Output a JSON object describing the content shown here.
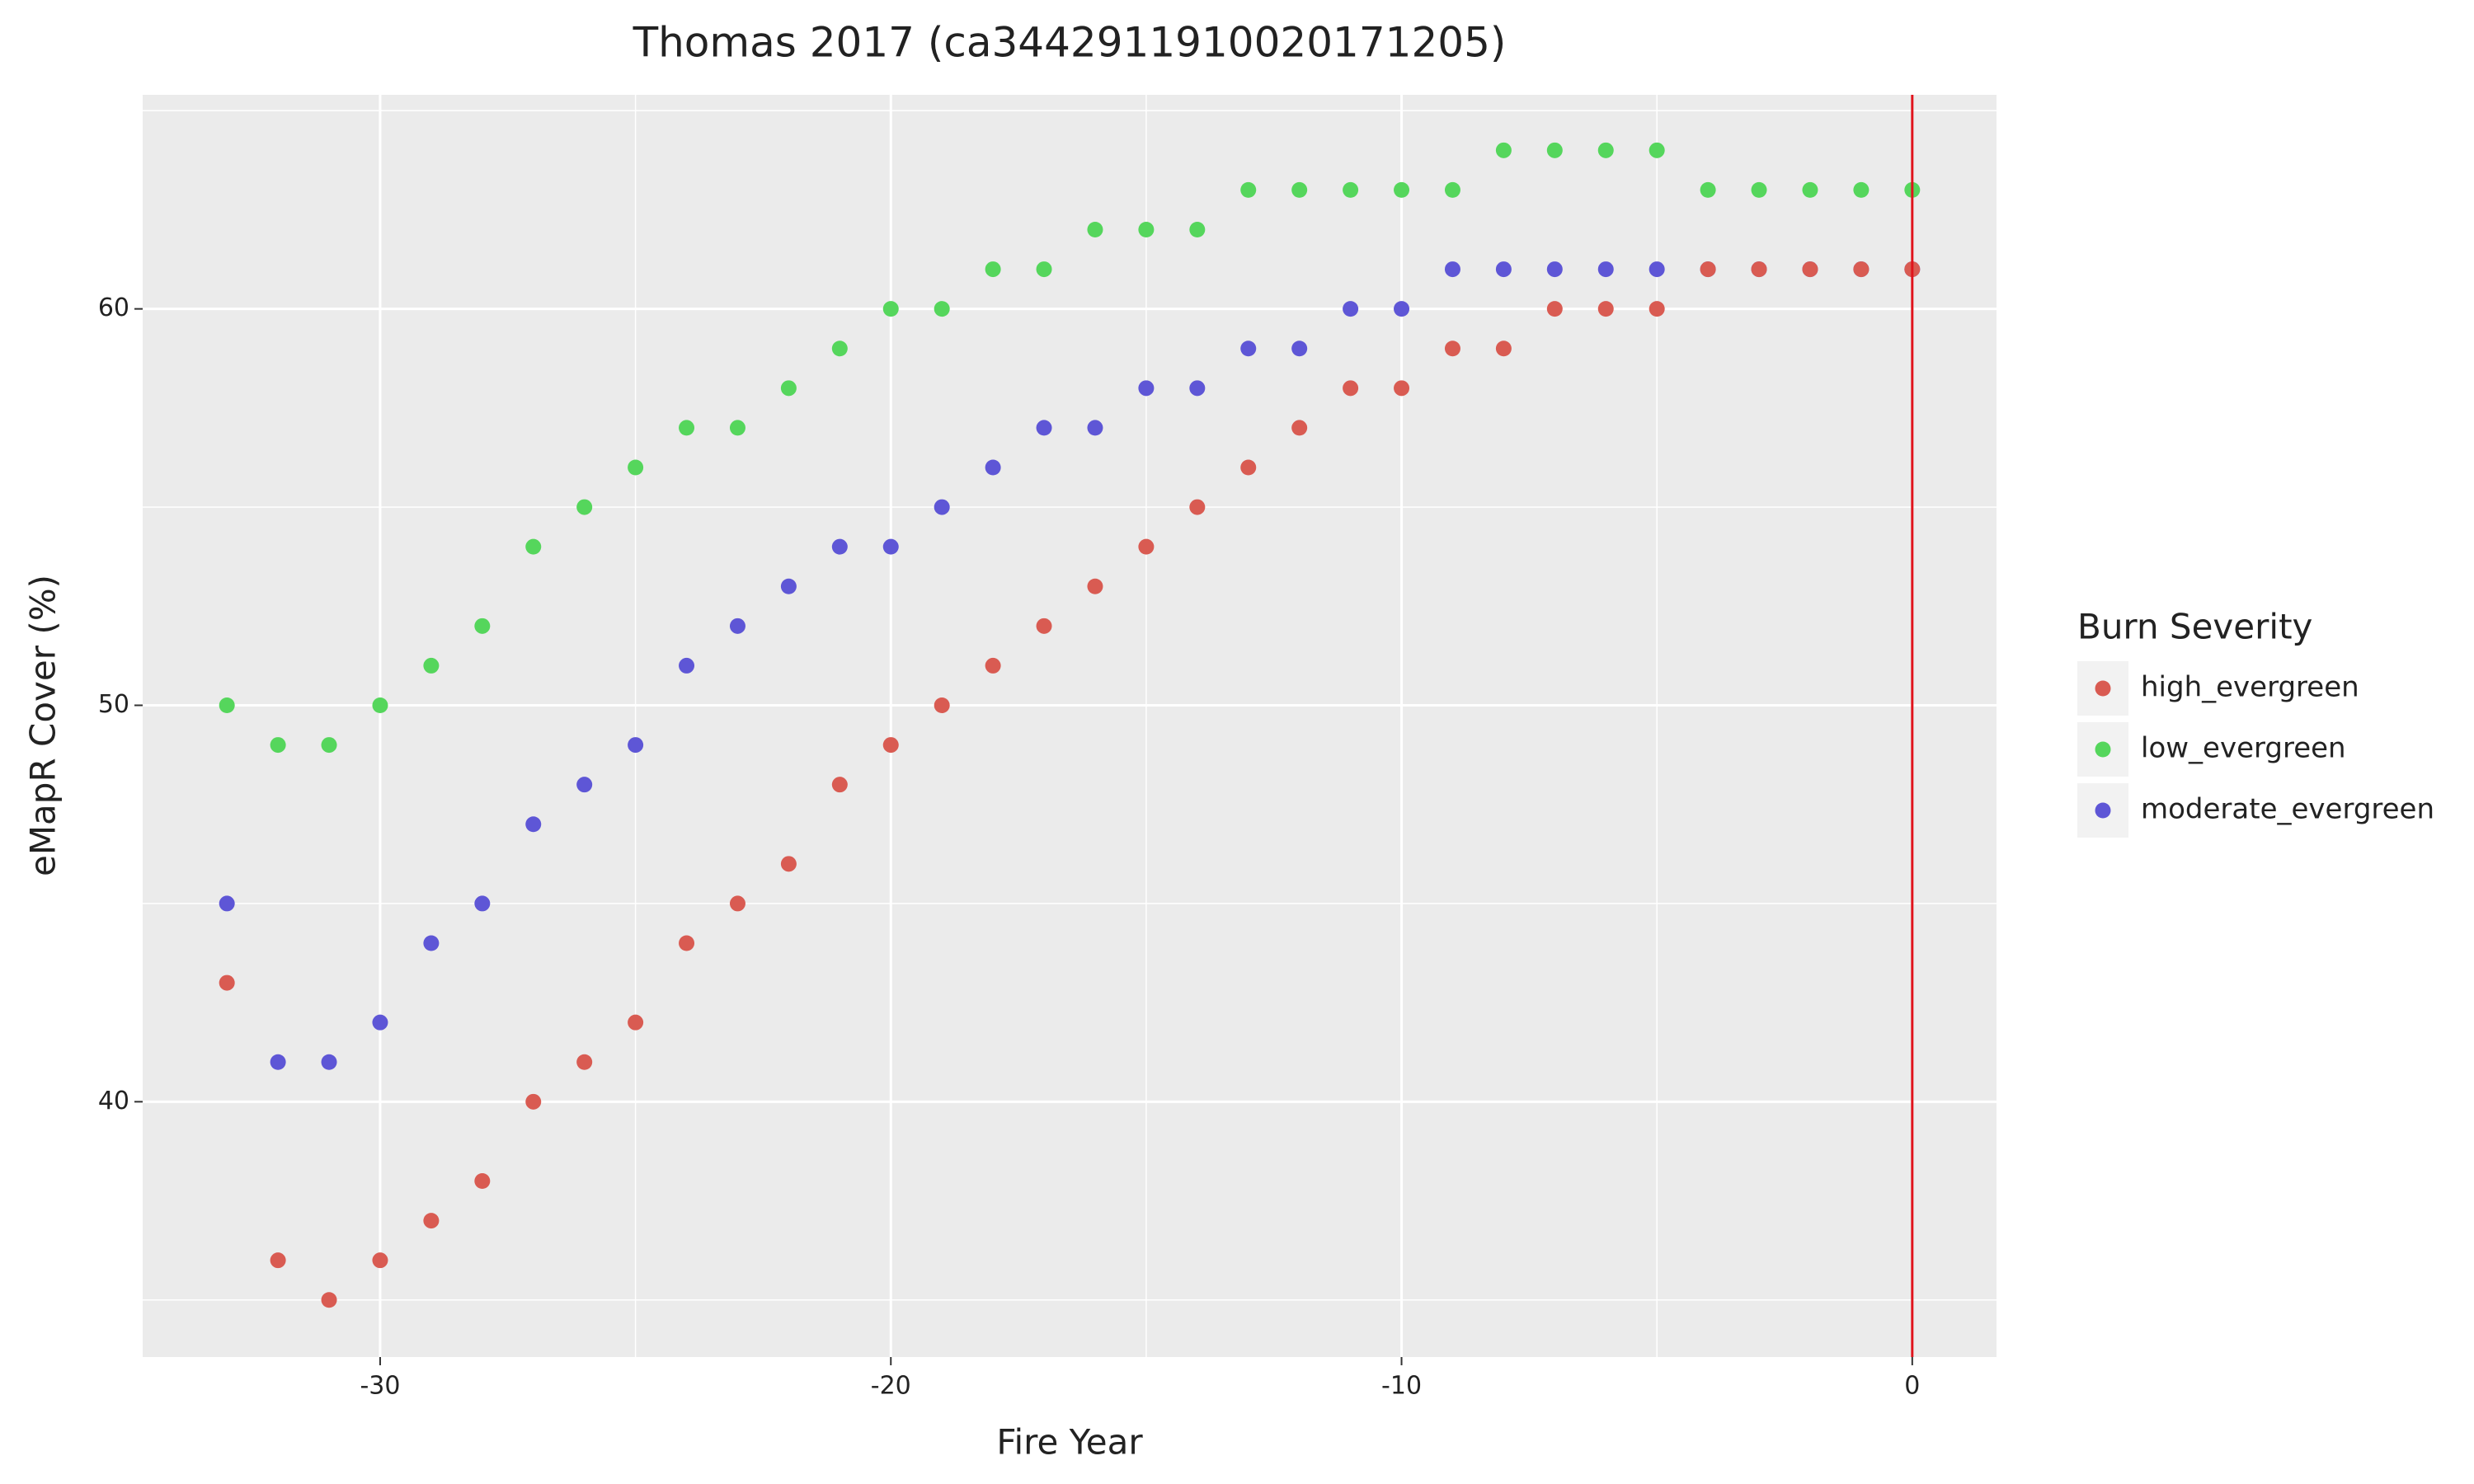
{
  "chart_data": {
    "type": "scatter",
    "title": "Thomas 2017 (ca3442911910020171205)",
    "x_label": "Fire Year",
    "y_label": "eMapR Cover (%)",
    "legend_title": "Burn Severity",
    "x": [
      -33,
      -32,
      -31,
      -30,
      -29,
      -28,
      -27,
      -26,
      -25,
      -24,
      -23,
      -22,
      -21,
      -20,
      -19,
      -18,
      -17,
      -16,
      -15,
      -14,
      -13,
      -12,
      -11,
      -10,
      -9,
      -8,
      -7,
      -6,
      -5,
      -4,
      -3,
      -2,
      -1,
      0
    ],
    "series": [
      {
        "name": "moderate_evergreen",
        "color": "#5e56d6",
        "values": [
          45,
          41,
          41,
          42,
          44,
          45,
          47,
          48,
          49,
          51,
          52,
          53,
          54,
          54,
          55,
          56,
          57,
          57,
          58,
          58,
          59,
          59,
          60,
          60,
          61,
          61,
          61,
          61,
          61,
          61,
          61,
          61,
          61,
          61
        ]
      },
      {
        "name": "low_evergreen",
        "color": "#55d65c",
        "values": [
          50,
          49,
          49,
          50,
          51,
          52,
          54,
          55,
          56,
          57,
          57,
          58,
          59,
          60,
          60,
          61,
          61,
          62,
          62,
          62,
          63,
          63,
          63,
          63,
          63,
          64,
          64,
          64,
          64,
          63,
          63,
          63,
          63,
          63
        ]
      },
      {
        "name": "high_evergreen",
        "color": "#d95b52",
        "values": [
          43,
          36,
          35,
          36,
          37,
          38,
          40,
          41,
          42,
          44,
          45,
          46,
          48,
          49,
          50,
          51,
          52,
          53,
          54,
          55,
          56,
          57,
          58,
          58,
          59,
          59,
          60,
          60,
          60,
          61,
          61,
          61,
          61,
          61
        ]
      }
    ],
    "legend_order": [
      2,
      1,
      0
    ],
    "xlim": [
      -34.65,
      1.65
    ],
    "ylim": [
      33.56,
      65.4
    ],
    "xticks": [
      -30,
      -20,
      -10,
      0
    ],
    "yticks": [
      40,
      50,
      60
    ],
    "minor_xticks": [
      -25,
      -15,
      -5
    ],
    "minor_yticks": [
      35,
      45,
      55,
      65
    ],
    "grid": true,
    "vline": {
      "x": 0,
      "color": "#e0141c"
    }
  }
}
